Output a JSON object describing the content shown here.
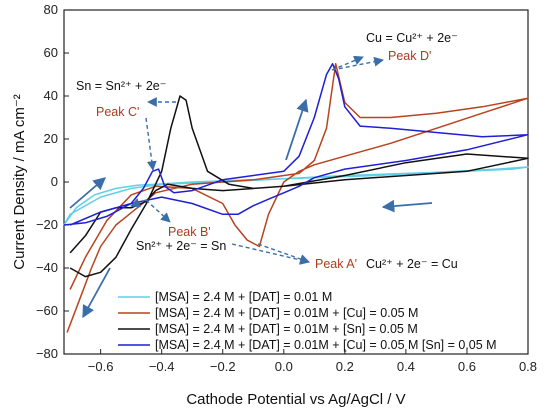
{
  "colors": {
    "cyan": "#5fd0e6",
    "red": "#b7441f",
    "black": "#111111",
    "blue": "#1f1fd6",
    "arrow": "#3a6ea8",
    "peak_red": "#b03a20"
  },
  "chart_data": {
    "type": "line",
    "xlabel": "Cathode Potential vs Ag/AgCl / V",
    "ylabel": "Current Density / mA cm⁻²",
    "xlim": [
      -0.72,
      0.8
    ],
    "ylim": [
      -80,
      80
    ],
    "x_ticks": [
      -0.6,
      -0.4,
      -0.2,
      0.0,
      0.2,
      0.4,
      0.6,
      0.8
    ],
    "x_tick_labels": [
      "−0.6",
      "−0.4",
      "−0.2",
      "0.0",
      "0.2",
      "0.4",
      "0.6",
      "0.8"
    ],
    "y_ticks": [
      -80,
      -60,
      -40,
      -20,
      0,
      20,
      40,
      60,
      80
    ],
    "y_tick_labels": [
      "−80",
      "−60",
      "−40",
      "−20",
      "0",
      "20",
      "40",
      "60",
      "80"
    ],
    "grid": false,
    "legend_position": "bottom-left",
    "series": [
      {
        "name": "[MSA] = 2.4 M + [DAT] = 0.01 M",
        "color": "#5fd0e6",
        "x": [
          -0.72,
          -0.68,
          -0.62,
          -0.55,
          -0.48,
          -0.42,
          -0.3,
          -0.1,
          0.1,
          0.3,
          0.5,
          0.7,
          0.8,
          0.75,
          0.6,
          0.4,
          0.2,
          0.0,
          -0.2,
          -0.4,
          -0.5,
          -0.6,
          -0.7,
          -0.72
        ],
        "y": [
          -20,
          -12,
          -6,
          -3,
          -1.5,
          -1,
          0,
          1,
          2,
          3,
          4.5,
          6,
          7,
          6,
          5,
          4,
          3,
          1.5,
          0,
          -1,
          -3,
          -7,
          -15,
          -20
        ]
      },
      {
        "name": "[MSA] = 2.4 M + [DAT] = 0.01M + [Cu] = 0.05 M",
        "color": "#b7441f",
        "x": [
          -0.71,
          -0.67,
          -0.63,
          -0.6,
          -0.55,
          -0.48,
          -0.42,
          -0.3,
          -0.1,
          0.05,
          0.1,
          0.14,
          0.16,
          0.17,
          0.2,
          0.25,
          0.35,
          0.5,
          0.65,
          0.8,
          0.65,
          0.5,
          0.35,
          0.2,
          0.1,
          0.05,
          0.0,
          -0.05,
          -0.08,
          -0.12,
          -0.16,
          -0.2,
          -0.3,
          -0.42,
          -0.5,
          -0.58,
          -0.65,
          -0.7
        ],
        "y": [
          -70,
          -55,
          -40,
          -30,
          -20,
          -12,
          -5,
          -1,
          1,
          4,
          10,
          25,
          45,
          55,
          37,
          30,
          30,
          32,
          35,
          39,
          32,
          25,
          18,
          12,
          8,
          5,
          0,
          -15,
          -30,
          -27,
          -20,
          -10,
          -3,
          -2,
          -6,
          -18,
          -35,
          -50
        ]
      },
      {
        "name": "[MSA] = 2.4 M + [DAT] = 0.01M + [Sn] = 0.05 M",
        "color": "#111111",
        "x": [
          -0.7,
          -0.65,
          -0.6,
          -0.55,
          -0.5,
          -0.45,
          -0.4,
          -0.37,
          -0.34,
          -0.32,
          -0.3,
          -0.25,
          -0.18,
          -0.1,
          0.0,
          0.2,
          0.4,
          0.6,
          0.8,
          0.6,
          0.4,
          0.2,
          0.0,
          -0.2,
          -0.3,
          -0.38,
          -0.42,
          -0.45,
          -0.5,
          -0.55,
          -0.6,
          -0.65,
          -0.7
        ],
        "y": [
          -40,
          -44,
          -42,
          -35,
          -22,
          -10,
          5,
          25,
          40,
          38,
          25,
          5,
          -1,
          -3,
          -2,
          3,
          9,
          13,
          11,
          5,
          3,
          1,
          -2,
          -4,
          -3,
          -1,
          -4,
          -9,
          -12,
          -12,
          -14,
          -25,
          -33
        ]
      },
      {
        "name": "[MSA] = 2.4 M + [DAT] = 0.01M + [Cu] = 0.05 M [Sn] = 0.05 M",
        "color": "#1f1fd6",
        "x": [
          -0.72,
          -0.65,
          -0.58,
          -0.5,
          -0.46,
          -0.43,
          -0.41,
          -0.39,
          -0.36,
          -0.3,
          -0.2,
          -0.1,
          0.0,
          0.05,
          0.1,
          0.14,
          0.16,
          0.18,
          0.2,
          0.25,
          0.35,
          0.5,
          0.65,
          0.8,
          0.6,
          0.4,
          0.2,
          0.1,
          0.05,
          0.0,
          -0.05,
          -0.1,
          -0.15,
          -0.2,
          -0.3,
          -0.4,
          -0.5,
          -0.6,
          -0.7
        ],
        "y": [
          -20,
          -19,
          -16,
          -10,
          -3,
          5,
          6,
          -2,
          -5,
          -4,
          1,
          3,
          5,
          12,
          30,
          50,
          55,
          48,
          35,
          26,
          25,
          23,
          21,
          22,
          15,
          10,
          6,
          2,
          -2,
          -5,
          -8,
          -11,
          -15,
          -15,
          -10,
          -7,
          -10,
          -14,
          -20
        ]
      }
    ],
    "annotations": [
      {
        "text": "Cu = Cu²⁺ + 2e⁻",
        "color": "#111111"
      },
      {
        "text": "Peak D'",
        "color": "#b03a20"
      },
      {
        "text": "Sn = Sn²⁺ + 2e⁻",
        "color": "#111111"
      },
      {
        "text": "Peak C'",
        "color": "#b03a20"
      },
      {
        "text": "Peak B'",
        "color": "#b03a20"
      },
      {
        "text": "Sn²⁺ + 2e⁻ = Sn",
        "color": "#111111"
      },
      {
        "text": "Peak A'",
        "color": "#b03a20"
      },
      {
        "text": "Cu²⁺ + 2e⁻ = Cu",
        "color": "#111111"
      }
    ]
  }
}
